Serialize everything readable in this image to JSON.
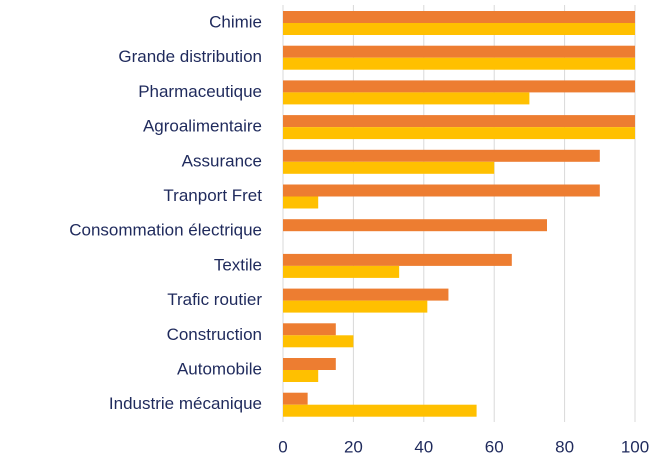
{
  "chart_data": {
    "type": "hbar",
    "categories": [
      "Chimie",
      "Grande distribution",
      "Pharmaceutique",
      "Agroalimentaire",
      "Assurance",
      "Tranport Fret",
      "Consommation électrique",
      "Textile",
      "Trafic routier",
      "Construction",
      "Automobile",
      "Industrie mécanique"
    ],
    "series": [
      {
        "color": "#ed7d31",
        "values": [
          100,
          100,
          100,
          100,
          90,
          90,
          75,
          65,
          47,
          15,
          15,
          7
        ]
      },
      {
        "color": "#ffc000",
        "values": [
          100,
          100,
          70,
          100,
          60,
          10,
          0,
          33,
          41,
          20,
          10,
          55
        ]
      }
    ],
    "xlim": [
      0,
      100
    ],
    "xticks": [
      0,
      20,
      40,
      60,
      80,
      100
    ],
    "grid": true
  }
}
